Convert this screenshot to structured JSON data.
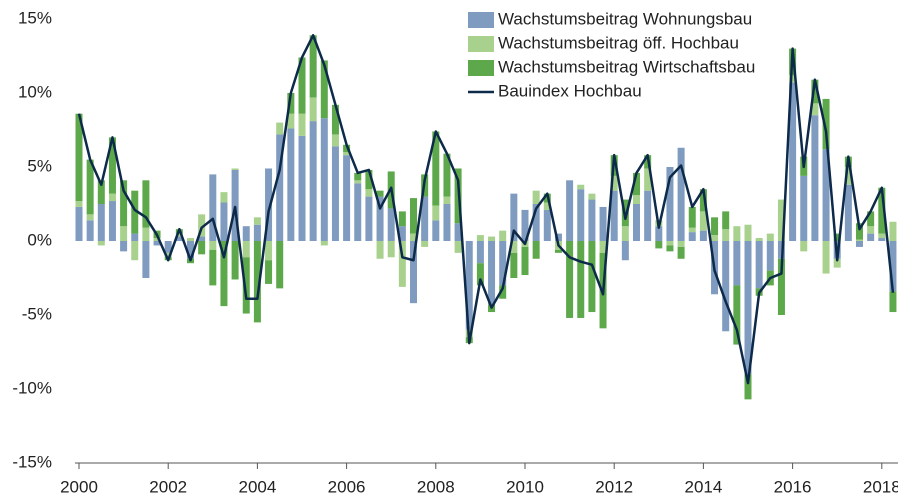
{
  "chart_data": {
    "type": "bar",
    "stacked": true,
    "categories": [
      "2000",
      null,
      null,
      null,
      null,
      null,
      null,
      null,
      "2002",
      null,
      null,
      null,
      null,
      null,
      null,
      null,
      "2004",
      null,
      null,
      null,
      null,
      null,
      null,
      null,
      "2006",
      null,
      null,
      null,
      null,
      null,
      null,
      null,
      "2008",
      null,
      null,
      null,
      null,
      null,
      null,
      null,
      "2010",
      null,
      null,
      null,
      null,
      null,
      null,
      null,
      "2012",
      null,
      null,
      null,
      null,
      null,
      null,
      null,
      "2014",
      null,
      null,
      null,
      null,
      null,
      null,
      null,
      "2016",
      null,
      null,
      null,
      null,
      null,
      null,
      null,
      "2018",
      null
    ],
    "ylim": [
      -15,
      15
    ],
    "yticks": [
      {
        "value": -15,
        "label": "-15%"
      },
      {
        "value": -10,
        "label": "-10%"
      },
      {
        "value": -5,
        "label": "-5%"
      },
      {
        "value": 0,
        "label": "0%"
      },
      {
        "value": 5,
        "label": "5%"
      },
      {
        "value": 10,
        "label": "10%"
      },
      {
        "value": 15,
        "label": "15%"
      }
    ],
    "series": [
      {
        "name": "Wachstumsbeitrag Wohnungsbau",
        "color": "#7f9bbf",
        "values": [
          2.3,
          1.4,
          2.5,
          2.7,
          -0.7,
          0.5,
          -2.5,
          -0.3,
          -0.8,
          0.3,
          -1.2,
          0.3,
          4.5,
          2.6,
          4.8,
          1.0,
          1.1,
          4.9,
          7.2,
          7.6,
          7.1,
          8.1,
          8.3,
          6.4,
          5.8,
          3.9,
          3.0,
          3.0,
          2.2,
          1.0,
          -4.2,
          3.0,
          1.4,
          2.5,
          1.2,
          -6.0,
          -1.5,
          -4.3,
          -3.0,
          3.2,
          2.1,
          2.5,
          2.1,
          0.5,
          4.1,
          3.5,
          2.8,
          2.3,
          3.4,
          -1.3,
          2.5,
          3.4,
          1.0,
          5.0,
          6.3,
          0.6,
          0.7,
          -3.6,
          -6.1,
          -3.0,
          -9.0,
          -3.2,
          -2.0,
          -1.2,
          10.7,
          4.4,
          8.5,
          6.2,
          -1.2,
          3.8,
          -0.4,
          0.5,
          0.2,
          -3.4
        ]
      },
      {
        "name": "Wachstumsbeitrag öff. Hochbau",
        "color": "#a9d18e",
        "values": [
          0.4,
          0.4,
          -0.3,
          0.5,
          1.0,
          -1.3,
          0.9,
          0.2,
          -0.3,
          0.2,
          0.2,
          1.5,
          -0.6,
          0.7,
          0.1,
          -1.1,
          0.5,
          -1.3,
          0.8,
          1.0,
          1.5,
          1.6,
          -0.3,
          0.8,
          0.2,
          0.2,
          0.5,
          -1.2,
          -1.1,
          -3.1,
          0.5,
          -0.4,
          1.0,
          0.5,
          -0.8,
          -0.5,
          0.4,
          0.3,
          0.7,
          -0.8,
          -0.4,
          0.9,
          0.5,
          -0.6,
          0.0,
          0.3,
          0.4,
          -0.8,
          1.0,
          1.0,
          0.6,
          1.5,
          0.4,
          -0.3,
          -0.4,
          0.3,
          1.3,
          0.4,
          0.8,
          1.0,
          1.1,
          0.2,
          0.5,
          2.8,
          0.5,
          -0.7,
          0.8,
          -2.2,
          -0.6,
          1.2,
          0.1,
          0.5,
          0.3,
          1.3
        ]
      },
      {
        "name": "Wachstumsbeitrag Wirtschaftsbau",
        "color": "#5da84a",
        "values": [
          5.9,
          3.7,
          1.6,
          3.8,
          3.1,
          2.9,
          3.2,
          0.5,
          -0.2,
          0.3,
          -0.3,
          -0.9,
          -2.4,
          -4.4,
          -2.6,
          -3.8,
          -5.5,
          -1.6,
          -3.2,
          1.4,
          3.8,
          4.2,
          3.9,
          2.0,
          0.5,
          0.5,
          1.3,
          0.4,
          2.5,
          1.0,
          2.4,
          1.5,
          5.0,
          2.9,
          3.7,
          -0.4,
          -1.5,
          -0.5,
          -0.9,
          -1.7,
          -1.9,
          -1.2,
          0.6,
          -0.2,
          -5.2,
          -5.2,
          -4.8,
          -5.1,
          1.4,
          1.8,
          1.5,
          0.9,
          -0.5,
          -0.4,
          -0.8,
          1.4,
          1.5,
          1.2,
          1.2,
          -4.0,
          -1.7,
          -0.5,
          -1.0,
          -3.8,
          1.8,
          1.3,
          1.6,
          3.4,
          0.5,
          0.7,
          1.1,
          1.0,
          3.1,
          -1.4
        ]
      },
      {
        "name": "Bauindex Hochbau",
        "color": "#0d2a4a",
        "type": "line",
        "values": [
          8.6,
          5.5,
          3.8,
          7.0,
          3.4,
          2.1,
          1.6,
          0.4,
          -1.3,
          0.8,
          -1.3,
          0.9,
          1.5,
          -1.1,
          2.3,
          -3.9,
          -3.9,
          2.0,
          4.8,
          10.0,
          12.4,
          13.9,
          11.9,
          9.2,
          6.5,
          4.6,
          4.8,
          2.2,
          3.6,
          -1.1,
          -1.3,
          4.1,
          7.4,
          5.9,
          4.1,
          -6.9,
          -2.6,
          -4.5,
          -3.2,
          0.7,
          -0.2,
          2.2,
          3.2,
          -0.3,
          -1.1,
          -1.4,
          -1.6,
          -3.6,
          5.8,
          1.5,
          4.6,
          5.8,
          0.9,
          4.3,
          5.1,
          2.3,
          3.5,
          -2.0,
          -4.1,
          -6.0,
          -9.6,
          -3.5,
          -2.5,
          -2.2,
          13.0,
          5.0,
          10.9,
          7.4,
          -1.3,
          5.7,
          0.8,
          2.0,
          3.6,
          -3.5
        ]
      }
    ],
    "legend": "top-right"
  }
}
